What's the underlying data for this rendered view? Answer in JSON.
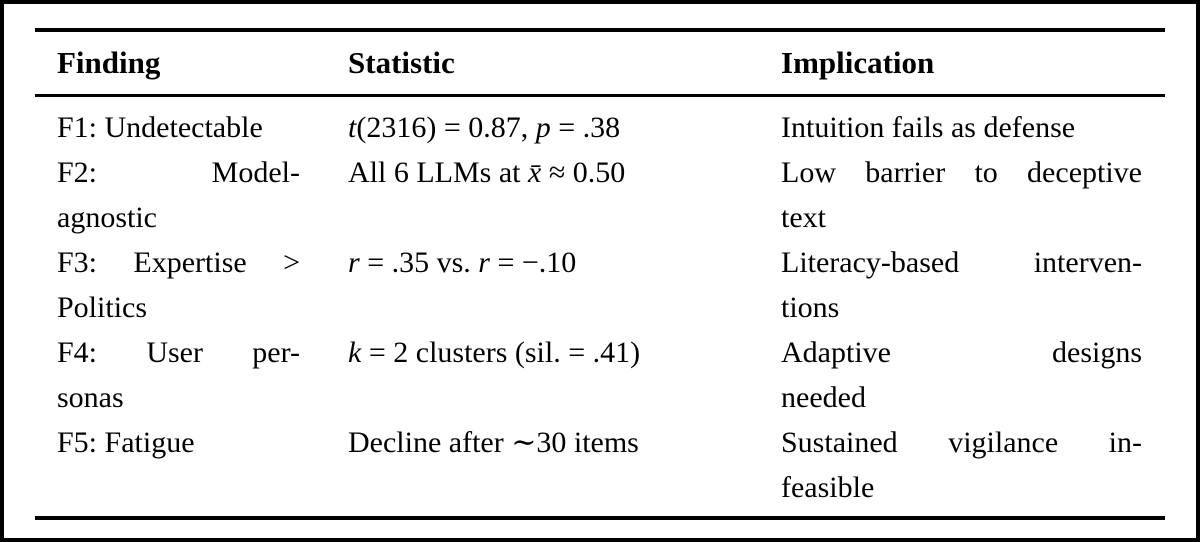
{
  "colors": {
    "text": "#000000",
    "background": "#ffffff",
    "frame_border": "#000000",
    "rule": "#000000"
  },
  "table": {
    "headers": [
      "Finding",
      "Statistic",
      "Implication"
    ],
    "rows": [
      {
        "finding_lines": [
          "F1: Undetectable"
        ],
        "statistic_segments": [
          {
            "text": "t",
            "italic": true
          },
          {
            "text": "(2316) = 0.87, ",
            "italic": false
          },
          {
            "text": "p",
            "italic": true
          },
          {
            "text": " = .38",
            "italic": false
          }
        ],
        "implication_lines": [
          "Intuition fails as defense"
        ]
      },
      {
        "finding_lines": [
          "F2: Model-",
          "agnostic"
        ],
        "statistic_segments": [
          {
            "text": "All 6 LLMs at ",
            "italic": false
          },
          {
            "text": "x̄",
            "italic": true
          },
          {
            "text": " ≈ 0.50",
            "italic": false
          }
        ],
        "implication_lines": [
          "Low barrier to deceptive",
          "text"
        ]
      },
      {
        "finding_lines": [
          "F3: Expertise >",
          "Politics"
        ],
        "statistic_segments": [
          {
            "text": "r",
            "italic": true
          },
          {
            "text": " = .35 vs. ",
            "italic": false
          },
          {
            "text": "r",
            "italic": true
          },
          {
            "text": " = −.10",
            "italic": false
          }
        ],
        "implication_lines": [
          "Literacy-based interven-",
          "tions"
        ]
      },
      {
        "finding_lines": [
          "F4: User per-",
          "sonas"
        ],
        "statistic_segments": [
          {
            "text": "k",
            "italic": true
          },
          {
            "text": " = 2 clusters (sil. = .41)",
            "italic": false
          }
        ],
        "implication_lines": [
          "Adaptive designs",
          "needed"
        ]
      },
      {
        "finding_lines": [
          "F5: Fatigue"
        ],
        "statistic_segments": [
          {
            "text": "Decline after ∼30 items",
            "italic": false
          }
        ],
        "implication_lines": [
          "Sustained vigilance in-",
          "feasible"
        ]
      }
    ]
  }
}
